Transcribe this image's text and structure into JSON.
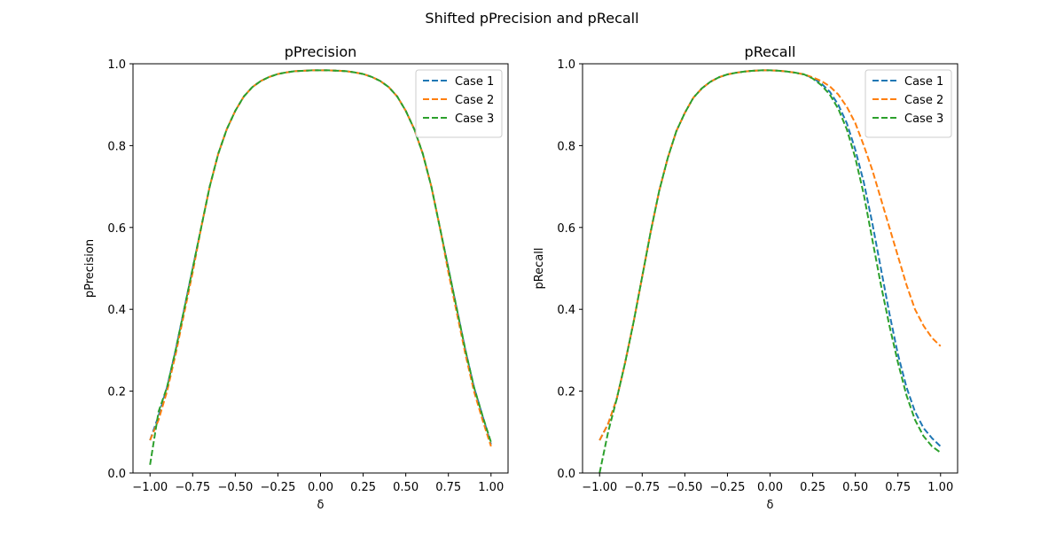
{
  "figure": {
    "suptitle": "Shifted pPrecision and pRecall"
  },
  "chart_data": [
    {
      "type": "line",
      "title": "pPrecision",
      "xlabel": "δ",
      "ylabel": "pPrecision",
      "xlim": [
        -1.1,
        1.1
      ],
      "ylim": [
        0.0,
        1.0
      ],
      "xticks": [
        "−1.00",
        "−0.75",
        "−0.50",
        "−0.25",
        "0.00",
        "0.25",
        "0.50",
        "0.75",
        "1.00"
      ],
      "yticks": [
        "0.0",
        "0.2",
        "0.4",
        "0.6",
        "0.8",
        "1.0"
      ],
      "grid": false,
      "legend_position": "top-right",
      "line_style": "dashed",
      "x": [
        -1.0,
        -0.95,
        -0.9,
        -0.85,
        -0.8,
        -0.75,
        -0.7,
        -0.65,
        -0.6,
        -0.55,
        -0.5,
        -0.45,
        -0.4,
        -0.35,
        -0.3,
        -0.25,
        -0.2,
        -0.15,
        -0.1,
        -0.05,
        0.0,
        0.05,
        0.1,
        0.15,
        0.2,
        0.25,
        0.3,
        0.35,
        0.4,
        0.45,
        0.5,
        0.55,
        0.6,
        0.65,
        0.7,
        0.75,
        0.8,
        0.85,
        0.9,
        0.95,
        1.0
      ],
      "series": [
        {
          "name": "Case 1",
          "color": "#1f77b4",
          "values": [
            0.08,
            0.14,
            0.21,
            0.3,
            0.4,
            0.5,
            0.6,
            0.7,
            0.78,
            0.84,
            0.885,
            0.92,
            0.943,
            0.958,
            0.968,
            0.975,
            0.979,
            0.982,
            0.983,
            0.984,
            0.984,
            0.984,
            0.983,
            0.982,
            0.979,
            0.975,
            0.968,
            0.958,
            0.943,
            0.92,
            0.885,
            0.84,
            0.78,
            0.7,
            0.6,
            0.5,
            0.4,
            0.3,
            0.21,
            0.14,
            0.07
          ]
        },
        {
          "name": "Case 2",
          "color": "#ff7f0e",
          "values": [
            0.08,
            0.13,
            0.2,
            0.29,
            0.39,
            0.49,
            0.6,
            0.7,
            0.78,
            0.84,
            0.885,
            0.92,
            0.943,
            0.958,
            0.968,
            0.975,
            0.979,
            0.982,
            0.983,
            0.984,
            0.984,
            0.984,
            0.983,
            0.982,
            0.979,
            0.975,
            0.968,
            0.958,
            0.943,
            0.92,
            0.885,
            0.84,
            0.78,
            0.7,
            0.6,
            0.49,
            0.39,
            0.29,
            0.2,
            0.13,
            0.065
          ]
        },
        {
          "name": "Case 3",
          "color": "#2ca02c",
          "values": [
            0.02,
            0.15,
            0.21,
            0.3,
            0.4,
            0.5,
            0.6,
            0.7,
            0.78,
            0.84,
            0.885,
            0.92,
            0.943,
            0.958,
            0.968,
            0.975,
            0.979,
            0.982,
            0.983,
            0.984,
            0.984,
            0.984,
            0.983,
            0.982,
            0.979,
            0.975,
            0.968,
            0.958,
            0.943,
            0.92,
            0.885,
            0.84,
            0.78,
            0.7,
            0.6,
            0.5,
            0.4,
            0.3,
            0.21,
            0.14,
            0.075
          ]
        }
      ]
    },
    {
      "type": "line",
      "title": "pRecall",
      "xlabel": "δ",
      "ylabel": "pRecall",
      "xlim": [
        -1.1,
        1.1
      ],
      "ylim": [
        0.0,
        1.0
      ],
      "xticks": [
        "−1.00",
        "−0.75",
        "−0.50",
        "−0.25",
        "0.00",
        "0.25",
        "0.50",
        "0.75",
        "1.00"
      ],
      "yticks": [
        "0.0",
        "0.2",
        "0.4",
        "0.6",
        "0.8",
        "1.0"
      ],
      "grid": false,
      "legend_position": "top-right",
      "line_style": "dashed",
      "x": [
        -1.0,
        -0.95,
        -0.9,
        -0.85,
        -0.8,
        -0.75,
        -0.7,
        -0.65,
        -0.6,
        -0.55,
        -0.5,
        -0.45,
        -0.4,
        -0.35,
        -0.3,
        -0.25,
        -0.2,
        -0.15,
        -0.1,
        -0.05,
        0.0,
        0.05,
        0.1,
        0.15,
        0.2,
        0.25,
        0.3,
        0.35,
        0.4,
        0.45,
        0.5,
        0.55,
        0.6,
        0.65,
        0.7,
        0.75,
        0.8,
        0.85,
        0.9,
        0.95,
        1.0
      ],
      "series": [
        {
          "name": "Case 1",
          "color": "#1f77b4",
          "values": [
            0.08,
            0.12,
            0.18,
            0.27,
            0.37,
            0.48,
            0.59,
            0.69,
            0.77,
            0.835,
            0.88,
            0.917,
            0.94,
            0.956,
            0.967,
            0.974,
            0.978,
            0.981,
            0.983,
            0.984,
            0.984,
            0.983,
            0.981,
            0.978,
            0.974,
            0.965,
            0.952,
            0.932,
            0.9,
            0.855,
            0.79,
            0.71,
            0.61,
            0.5,
            0.39,
            0.29,
            0.21,
            0.15,
            0.11,
            0.085,
            0.065
          ]
        },
        {
          "name": "Case 2",
          "color": "#ff7f0e",
          "values": [
            0.08,
            0.12,
            0.18,
            0.27,
            0.37,
            0.48,
            0.59,
            0.69,
            0.77,
            0.835,
            0.88,
            0.917,
            0.94,
            0.956,
            0.967,
            0.974,
            0.978,
            0.981,
            0.983,
            0.984,
            0.984,
            0.983,
            0.981,
            0.978,
            0.974,
            0.967,
            0.958,
            0.945,
            0.925,
            0.895,
            0.855,
            0.8,
            0.74,
            0.67,
            0.6,
            0.53,
            0.46,
            0.4,
            0.36,
            0.33,
            0.31
          ]
        },
        {
          "name": "Case 3",
          "color": "#2ca02c",
          "values": [
            0.0,
            0.1,
            0.18,
            0.27,
            0.37,
            0.48,
            0.59,
            0.69,
            0.77,
            0.835,
            0.88,
            0.917,
            0.94,
            0.956,
            0.967,
            0.974,
            0.978,
            0.981,
            0.983,
            0.984,
            0.984,
            0.983,
            0.981,
            0.978,
            0.974,
            0.964,
            0.948,
            0.925,
            0.89,
            0.84,
            0.77,
            0.68,
            0.57,
            0.46,
            0.36,
            0.27,
            0.19,
            0.13,
            0.09,
            0.065,
            0.05
          ]
        }
      ]
    }
  ]
}
